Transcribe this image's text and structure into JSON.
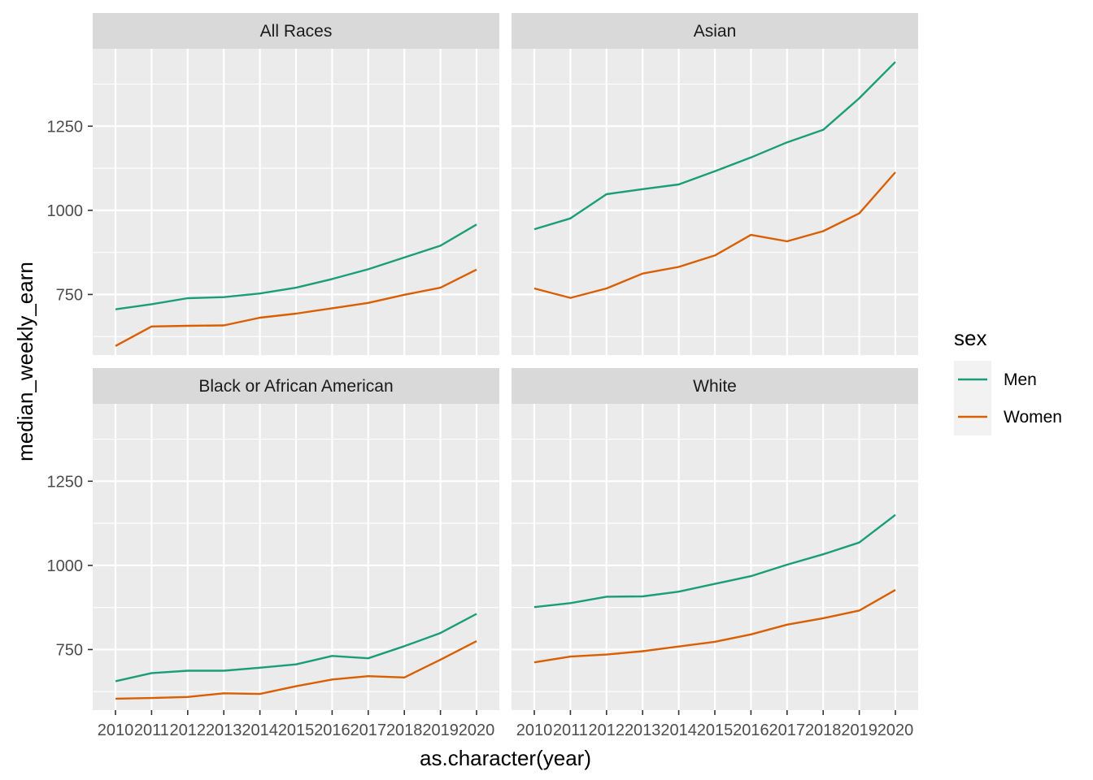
{
  "chart_data": {
    "type": "line",
    "facet_by": "race",
    "x_label": "as.character(year)",
    "y_label": "median_weekly_earn",
    "x": [
      "2010",
      "2011",
      "2012",
      "2013",
      "2014",
      "2015",
      "2016",
      "2017",
      "2018",
      "2019",
      "2020"
    ],
    "y_ticks": [
      750,
      1000,
      1250
    ],
    "ylim": [
      570,
      1480
    ],
    "grid": true,
    "legend": {
      "title": "sex",
      "position": "right",
      "entries": [
        {
          "name": "Men",
          "color": "#1B9E77"
        },
        {
          "name": "Women",
          "color": "#D95F02"
        }
      ]
    },
    "panels": [
      {
        "title": "All Races",
        "series": [
          {
            "name": "Men",
            "values": [
              706,
              721,
              739,
              742,
              753,
              770,
              796,
              825,
              860,
              895,
              958
            ]
          },
          {
            "name": "Women",
            "values": [
              597,
              655,
              657,
              658,
              681,
              693,
              709,
              725,
              749,
              770,
              824
            ]
          }
        ]
      },
      {
        "title": "Asian",
        "series": [
          {
            "name": "Men",
            "values": [
              944,
              976,
              1048,
              1063,
              1077,
              1116,
              1157,
              1202,
              1239,
              1333,
              1441
            ]
          },
          {
            "name": "Women",
            "values": [
              768,
              740,
              768,
              812,
              832,
              866,
              927,
              908,
              938,
              991,
              1113
            ]
          }
        ]
      },
      {
        "title": "Black or African American",
        "series": [
          {
            "name": "Men",
            "values": [
              656,
              680,
              687,
              687,
              696,
              706,
              731,
              724,
              760,
              799,
              856
            ]
          },
          {
            "name": "Women",
            "values": [
              604,
              606,
              609,
              620,
              618,
              641,
              661,
              671,
              667,
              720,
              775
            ]
          }
        ]
      },
      {
        "title": "White",
        "series": [
          {
            "name": "Men",
            "values": [
              876,
              888,
              907,
              908,
              922,
              945,
              968,
              1002,
              1033,
              1068,
              1150
            ]
          },
          {
            "name": "Women",
            "values": [
              712,
              729,
              735,
              745,
              759,
              773,
              795,
              824,
              843,
              866,
              927
            ]
          }
        ]
      }
    ]
  }
}
